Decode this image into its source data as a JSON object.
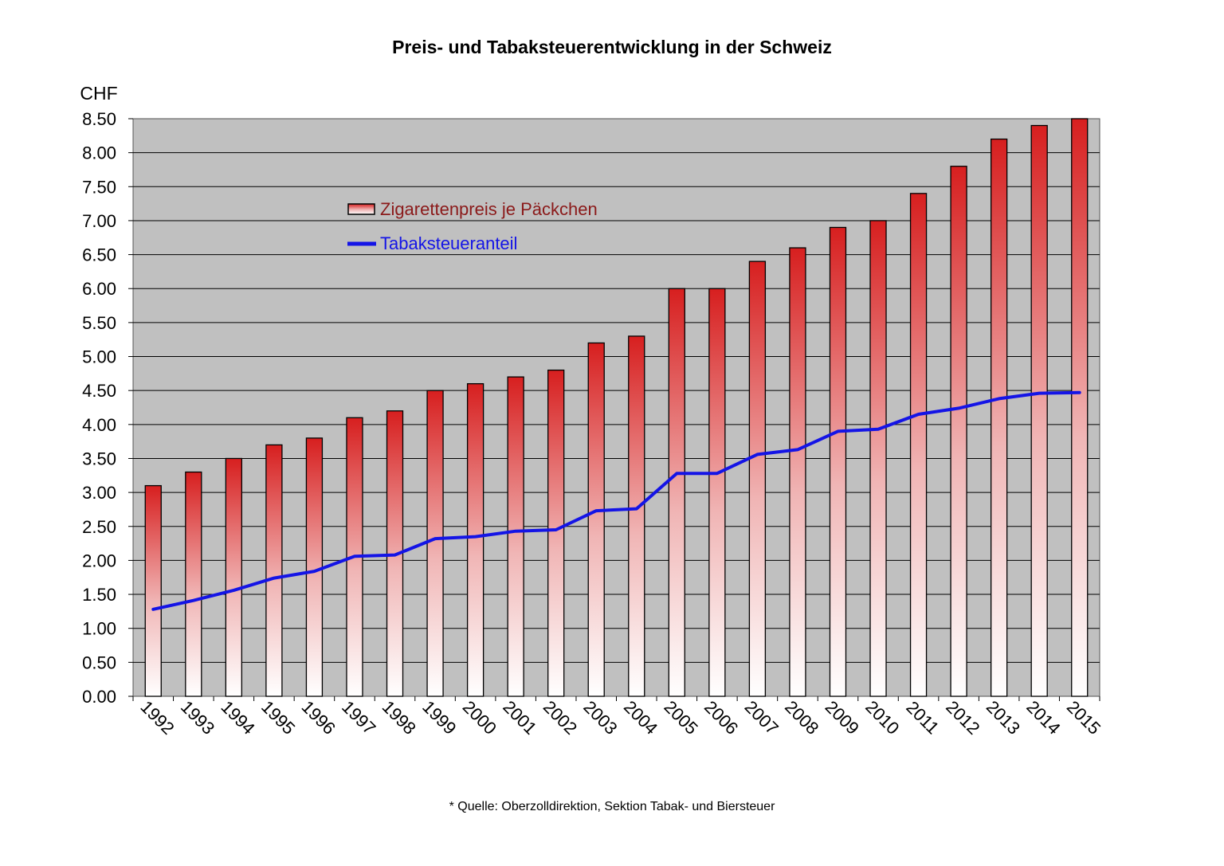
{
  "chart_data": {
    "type": "bar",
    "title": "Preis- und Tabaksteuerentwicklung in der Schweiz",
    "unit_label": "CHF",
    "source_note": "* Quelle: Oberzolldirektion, Sektion Tabak- und Biersteuer",
    "categories": [
      "1992",
      "1993",
      "1994",
      "1995",
      "1996",
      "1997",
      "1998",
      "1999",
      "2000",
      "2001",
      "2002",
      "2003",
      "2004",
      "2005",
      "2006",
      "2007",
      "2008",
      "2009",
      "2010",
      "2011",
      "2012",
      "2013",
      "2014",
      "2015"
    ],
    "ylim": [
      0,
      8.5
    ],
    "yticks": [
      "0.00",
      "0.50",
      "1.00",
      "1.50",
      "2.00",
      "2.50",
      "3.00",
      "3.50",
      "4.00",
      "4.50",
      "5.00",
      "5.50",
      "6.00",
      "6.50",
      "7.00",
      "7.50",
      "8.00",
      "8.50"
    ],
    "grid": true,
    "legend_position": "top-left",
    "series": [
      {
        "name": "Zigarettenpreis je Päckchen",
        "type": "bar",
        "color": "#d71f1f",
        "values": [
          3.1,
          3.3,
          3.5,
          3.7,
          3.8,
          4.1,
          4.2,
          4.5,
          4.6,
          4.7,
          4.8,
          5.2,
          5.3,
          6.0,
          6.0,
          6.4,
          6.6,
          6.9,
          7.0,
          7.4,
          7.8,
          8.2,
          8.4,
          8.5
        ]
      },
      {
        "name": "Tabaksteueranteil",
        "type": "line",
        "color": "#1414e6",
        "values": [
          1.28,
          1.41,
          1.56,
          1.74,
          1.84,
          2.06,
          2.08,
          2.32,
          2.35,
          2.43,
          2.45,
          2.73,
          2.76,
          3.28,
          3.28,
          3.56,
          3.63,
          3.9,
          3.93,
          4.15,
          4.24,
          4.38,
          4.46,
          4.47
        ]
      }
    ],
    "colors": {
      "plot_background": "#c0c0c0",
      "legend_bar_text": "#8b1a1a",
      "legend_line_text": "#1414e6"
    }
  }
}
